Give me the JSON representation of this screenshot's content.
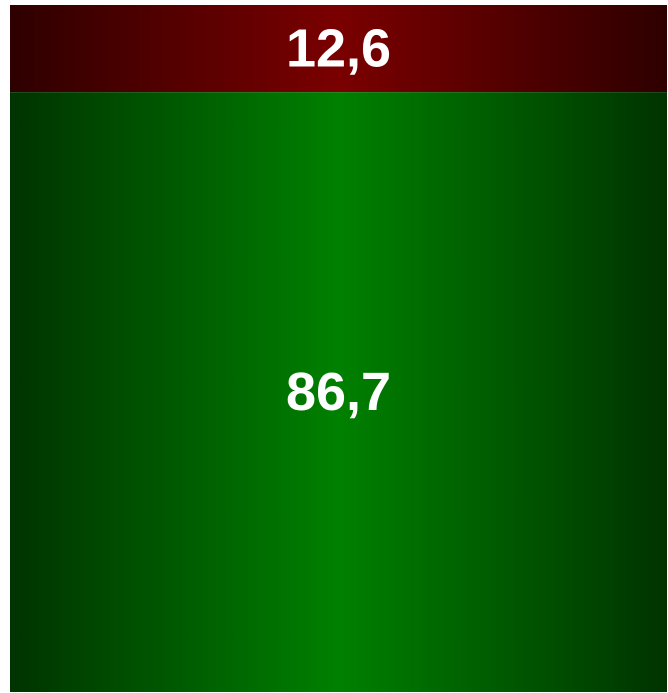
{
  "chart_data": {
    "type": "bar",
    "orientation": "vertical-stacked",
    "series": [
      {
        "value": 12.6,
        "label": "12,6",
        "color": "#7a0000",
        "edge_color": "#2e0000"
      },
      {
        "value": 86.7,
        "label": "86,7",
        "color": "#008000",
        "edge_color": "#003300"
      }
    ],
    "stack_order": "top-to-bottom",
    "title": "",
    "xlabel": "",
    "ylabel": "",
    "grid": false,
    "legend": "none"
  }
}
